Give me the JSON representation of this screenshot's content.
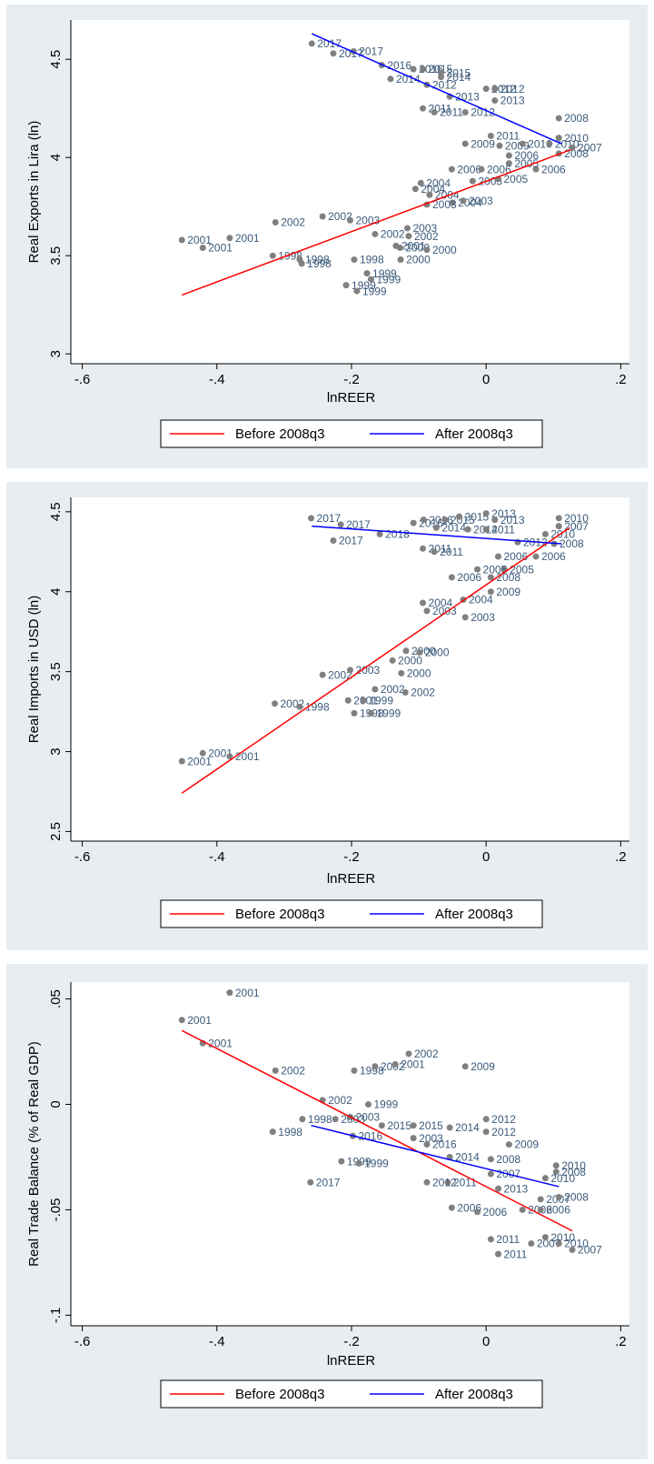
{
  "chart_data": [
    {
      "type": "scatter",
      "xlabel": "lnREER",
      "ylabel": "Real Exports in Lira (ln)",
      "xlim": [
        -0.617,
        0.213
      ],
      "ylim": [
        2.95,
        4.7
      ],
      "xticks": [
        {
          "value": -0.6,
          "label": "-.6"
        },
        {
          "value": -0.4,
          "label": "-.4"
        },
        {
          "value": -0.2,
          "label": "-.2"
        },
        0,
        {
          "value": 0.2,
          "label": ".2"
        }
      ],
      "yticks": [
        3,
        3.5,
        4,
        4.5
      ],
      "points": {
        "color": "#808080",
        "x": [
          -0.259,
          -0.227,
          -0.197,
          -0.155,
          -0.142,
          -0.108,
          -0.094,
          -0.067,
          -0.067,
          -0.088,
          -0.054,
          -0.094,
          -0.077,
          -0.031,
          0,
          0.013,
          0.013,
          0.108,
          0.007,
          -0.031,
          0.02,
          0.054,
          0.094,
          0.108,
          0.108,
          0.128,
          0.034,
          0.074,
          0.034,
          -0.051,
          -0.007,
          -0.02,
          0.018,
          -0.097,
          -0.105,
          -0.084,
          -0.05,
          -0.088,
          -0.034,
          -0.243,
          -0.313,
          -0.202,
          -0.117,
          -0.165,
          -0.115,
          -0.134,
          -0.128,
          -0.088,
          -0.452,
          -0.421,
          -0.381,
          -0.317,
          -0.277,
          -0.274,
          -0.196,
          -0.127,
          -0.177,
          -0.171,
          -0.208,
          -0.192
        ],
        "values": [
          4.58,
          4.53,
          4.54,
          4.47,
          4.4,
          4.45,
          4.45,
          4.43,
          4.41,
          4.37,
          4.31,
          4.25,
          4.23,
          4.23,
          4.35,
          4.35,
          4.29,
          4.2,
          4.11,
          4.07,
          4.06,
          4.07,
          4.07,
          4.1,
          4.02,
          4.05,
          4.01,
          3.94,
          3.97,
          3.94,
          3.94,
          3.88,
          3.89,
          3.87,
          3.84,
          3.81,
          3.77,
          3.76,
          3.78,
          3.7,
          3.67,
          3.68,
          3.64,
          3.61,
          3.6,
          3.55,
          3.54,
          3.53,
          3.58,
          3.54,
          3.59,
          3.5,
          3.48,
          3.46,
          3.48,
          3.48,
          3.41,
          3.38,
          3.35,
          3.32
        ],
        "labels": [
          "2017",
          "2017",
          "2017",
          "2016",
          "2014",
          "2016",
          "2015",
          "2015",
          "2014",
          "2012",
          "2013",
          "2011",
          "2011",
          "2012",
          "2012",
          "2012",
          "2013",
          "2008",
          "2011",
          "2009",
          "2009",
          "2010",
          "2010",
          "2010",
          "2008",
          "2007",
          "2006",
          "2006",
          "2005",
          "2006",
          "2006",
          "2005",
          "2005",
          "2004",
          "2004",
          "2004",
          "2004",
          "2003",
          "2003",
          "2002",
          "2002",
          "2003",
          "2003",
          "2002",
          "2002",
          "2001",
          "2000",
          "2000",
          "2001",
          "2001",
          "2001",
          "1998",
          "1998",
          "1998",
          "1998",
          "2000",
          "1999",
          "1999",
          "1999",
          "1999"
        ]
      },
      "fits": [
        {
          "name": "Before 2008q3",
          "color": "#ff0000",
          "x": [
            -0.452,
            0.126
          ],
          "values": [
            3.3,
            4.04
          ]
        },
        {
          "name": "After 2008q3",
          "color": "#0000ff",
          "x": [
            -0.259,
            0.112
          ],
          "values": [
            4.63,
            4.07
          ]
        }
      ]
    },
    {
      "type": "scatter",
      "xlabel": "lnREER",
      "ylabel": "Real Imports in USD (ln)",
      "xlim": [
        -0.617,
        0.213
      ],
      "ylim": [
        2.44,
        4.59
      ],
      "xticks": [
        {
          "value": -0.6,
          "label": "-.6"
        },
        {
          "value": -0.4,
          "label": "-.4"
        },
        {
          "value": -0.2,
          "label": "-.2"
        },
        0,
        {
          "value": 0.2,
          "label": ".2"
        }
      ],
      "yticks": [
        2.5,
        3,
        3.5,
        4,
        4.5
      ],
      "points": {
        "color": "#808080",
        "x": [
          -0.26,
          -0.216,
          -0.227,
          -0.158,
          -0.108,
          -0.093,
          -0.061,
          -0.04,
          -0.074,
          -0.027,
          0,
          0.013,
          0,
          -0.094,
          -0.077,
          0.047,
          0.108,
          0.108,
          0.088,
          0.101,
          0.074,
          0.018,
          0.027,
          -0.013,
          0.007,
          0.007,
          -0.051,
          -0.034,
          -0.094,
          -0.088,
          -0.031,
          -0.119,
          -0.099,
          -0.139,
          -0.126,
          -0.243,
          -0.202,
          -0.165,
          -0.12,
          -0.205,
          -0.182,
          -0.314,
          -0.277,
          -0.196,
          -0.171,
          -0.452,
          -0.421,
          -0.381
        ],
        "values": [
          4.46,
          4.42,
          4.32,
          4.36,
          4.43,
          4.45,
          4.45,
          4.47,
          4.4,
          4.39,
          4.49,
          4.45,
          4.39,
          4.27,
          4.25,
          4.31,
          4.46,
          4.41,
          4.36,
          4.3,
          4.22,
          4.22,
          4.14,
          4.14,
          4.09,
          4.0,
          4.09,
          3.95,
          3.93,
          3.88,
          3.84,
          3.63,
          3.62,
          3.57,
          3.49,
          3.48,
          3.51,
          3.39,
          3.37,
          3.32,
          3.32,
          3.3,
          3.28,
          3.24,
          3.24,
          2.94,
          2.99,
          2.97
        ],
        "labels": [
          "2017",
          "2017",
          "2017",
          "2018",
          "2016",
          "2016",
          "2015",
          "2015",
          "2014",
          "2014",
          "2013",
          "2013",
          "2011",
          "2011",
          "2011",
          "2012",
          "2010",
          "2007",
          "2010",
          "2008",
          "2006",
          "2006",
          "2005",
          "2005",
          "2008",
          "2009",
          "2006",
          "2004",
          "2004",
          "2003",
          "2003",
          "2000",
          "2000",
          "2000",
          "2000",
          "2002",
          "2003",
          "2002",
          "2002",
          "2001",
          "1999",
          "2002",
          "1998",
          "1998",
          "1999",
          "2001",
          "2001",
          "2001"
        ]
      },
      "fits": [
        {
          "name": "Before 2008q3",
          "color": "#ff0000",
          "x": [
            -0.452,
            0.124
          ],
          "values": [
            2.74,
            4.4
          ]
        },
        {
          "name": "After 2008q3",
          "color": "#0000ff",
          "x": [
            -0.259,
            0.112
          ],
          "values": [
            4.41,
            4.3
          ]
        }
      ]
    },
    {
      "type": "scatter",
      "xlabel": "lnREER",
      "ylabel": "Real Trade Balance (% of Real GDP)",
      "xlim": [
        -0.617,
        0.213
      ],
      "ylim": [
        -0.105,
        0.058
      ],
      "xticks": [
        {
          "value": -0.6,
          "label": "-.6"
        },
        {
          "value": -0.4,
          "label": "-.4"
        },
        {
          "value": -0.2,
          "label": "-.2"
        },
        0,
        {
          "value": 0.2,
          "label": ".2"
        }
      ],
      "yticks": [
        {
          "value": -0.1,
          "label": "-.1"
        },
        {
          "value": -0.05,
          "label": "-.05"
        },
        0,
        {
          "value": 0.05,
          "label": ".05"
        }
      ],
      "points": {
        "color": "#808080",
        "x": [
          -0.381,
          -0.452,
          -0.421,
          -0.313,
          -0.196,
          -0.165,
          -0.135,
          -0.115,
          -0.031,
          -0.243,
          -0.175,
          -0.202,
          -0.224,
          -0.273,
          -0.317,
          -0.198,
          -0.155,
          -0.108,
          -0.054,
          0,
          0,
          -0.108,
          -0.088,
          0.034,
          0.007,
          -0.215,
          -0.189,
          -0.054,
          0.104,
          0.104,
          0.088,
          0.007,
          -0.057,
          0.018,
          -0.088,
          -0.261,
          0.081,
          0.108,
          0.054,
          0.081,
          -0.051,
          -0.013,
          0.007,
          0.018,
          0.067,
          0.088,
          0.108,
          0.128
        ],
        "values": [
          0.053,
          0.04,
          0.029,
          0.016,
          0.016,
          0.018,
          0.019,
          0.024,
          0.018,
          0.002,
          0.0,
          -0.006,
          -0.007,
          -0.007,
          -0.013,
          -0.015,
          -0.01,
          -0.01,
          -0.011,
          -0.007,
          -0.013,
          -0.016,
          -0.019,
          -0.019,
          -0.026,
          -0.027,
          -0.028,
          -0.025,
          -0.029,
          -0.032,
          -0.035,
          -0.033,
          -0.037,
          -0.04,
          -0.037,
          -0.037,
          -0.045,
          -0.044,
          -0.05,
          -0.05,
          -0.049,
          -0.051,
          -0.064,
          -0.071,
          -0.066,
          -0.063,
          -0.066,
          -0.069
        ],
        "labels": [
          "2001",
          "2001",
          "2001",
          "2002",
          "1998",
          "2002",
          "2001",
          "2002",
          "2009",
          "2002",
          "1999",
          "2003",
          "2003",
          "1998",
          "1998",
          "2016",
          "2015",
          "2015",
          "2014",
          "2012",
          "2012",
          "2003",
          "2016",
          "2009",
          "2008",
          "1999",
          "1999",
          "2014",
          "2010",
          "2008",
          "2010",
          "2007",
          "2011",
          "2013",
          "2012",
          "2017",
          "2007",
          "2008",
          "2006",
          "2006",
          "2006",
          "2006",
          "2011",
          "2011",
          "2007",
          "2010",
          "2010",
          "2007"
        ]
      },
      "fits": [
        {
          "name": "Before 2008q3",
          "color": "#ff0000",
          "x": [
            -0.452,
            0.128
          ],
          "values": [
            0.035,
            -0.06
          ]
        },
        {
          "name": "After 2008q3",
          "color": "#0000ff",
          "x": [
            -0.26,
            0.108
          ],
          "values": [
            -0.01,
            -0.039
          ]
        }
      ]
    }
  ]
}
